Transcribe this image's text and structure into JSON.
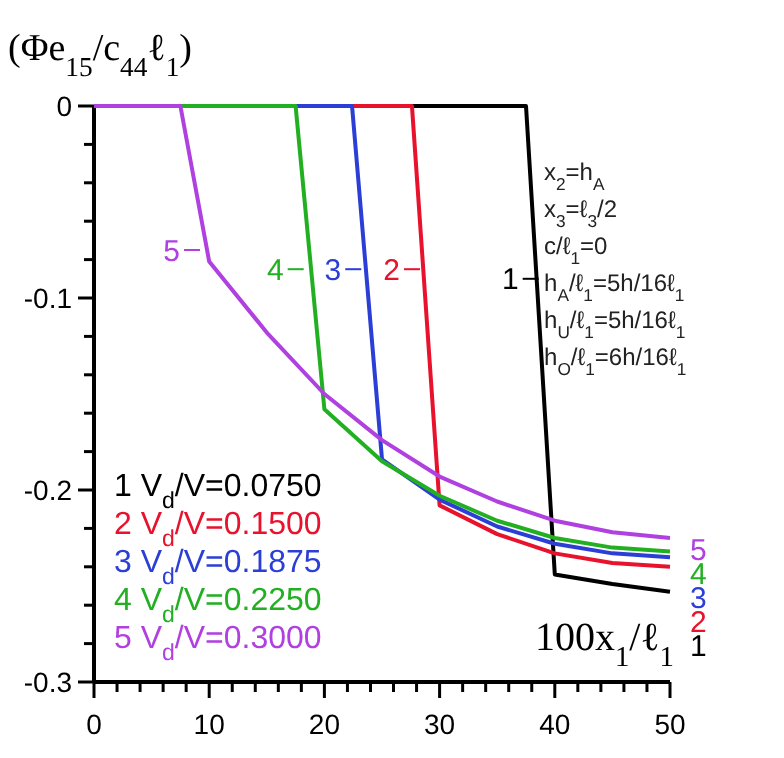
{
  "chart_data": {
    "type": "line",
    "xlabel": "100x$_{1}$/ℓ$_{1}$",
    "ylabel": "(Φe$_{15}$/c$_{44}$ℓ$_{1}$)",
    "xlim": [
      0,
      50
    ],
    "ylim": [
      -0.3,
      0
    ],
    "xticks": [
      0,
      {
        "value": 2,
        "label": null
      },
      {
        "value": 4,
        "label": null
      },
      {
        "value": 6,
        "label": null
      },
      {
        "value": 8,
        "label": null
      },
      10,
      {
        "value": 12,
        "label": null
      },
      {
        "value": 14,
        "label": null
      },
      {
        "value": 16,
        "label": null
      },
      {
        "value": 18,
        "label": null
      },
      20,
      {
        "value": 22,
        "label": null
      },
      {
        "value": 24,
        "label": null
      },
      {
        "value": 26,
        "label": null
      },
      {
        "value": 28,
        "label": null
      },
      30,
      {
        "value": 32,
        "label": null
      },
      {
        "value": 34,
        "label": null
      },
      {
        "value": 36,
        "label": null
      },
      {
        "value": 38,
        "label": null
      },
      40,
      {
        "value": 42,
        "label": null
      },
      {
        "value": 44,
        "label": null
      },
      {
        "value": 46,
        "label": null
      },
      {
        "value": 48,
        "label": null
      },
      50
    ],
    "yticks": [
      {
        "value": -0.3,
        "label": "-0.3"
      },
      {
        "value": -0.28,
        "label": null
      },
      {
        "value": -0.26,
        "label": null
      },
      {
        "value": -0.24,
        "label": null
      },
      {
        "value": -0.22,
        "label": null
      },
      {
        "value": -0.2,
        "label": "-0.2"
      },
      {
        "value": -0.18,
        "label": null
      },
      {
        "value": -0.16,
        "label": null
      },
      {
        "value": -0.14,
        "label": null
      },
      {
        "value": -0.12,
        "label": null
      },
      {
        "value": -0.1,
        "label": "-0.1"
      },
      {
        "value": -0.08,
        "label": null
      },
      {
        "value": -0.06,
        "label": null
      },
      {
        "value": -0.04,
        "label": null
      },
      {
        "value": -0.02,
        "label": null
      },
      0
    ],
    "grid": false,
    "legend": "bottom left",
    "marker": "none",
    "line_style": "solid",
    "series": [
      {
        "name": "1 V$_{d}$/V=0.0750",
        "color": "#000000",
        "x": [
          0,
          37.5,
          40,
          45,
          50
        ],
        "values": [
          0,
          0,
          -0.244,
          -0.249,
          -0.253
        ]
      },
      {
        "name": "2 V$_{d}$/V=0.1500",
        "color": "#e8122d",
        "x": [
          0,
          27.6,
          30,
          35,
          40,
          45,
          50
        ],
        "values": [
          0,
          0,
          -0.208,
          -0.223,
          -0.233,
          -0.238,
          -0.24
        ]
      },
      {
        "name": "3 V$_{d}$/V=0.1875",
        "color": "#2b3fd6",
        "x": [
          0,
          22.4,
          25,
          30,
          35,
          40,
          45,
          50
        ],
        "values": [
          0,
          0,
          -0.184,
          -0.205,
          -0.219,
          -0.228,
          -0.233,
          -0.235
        ]
      },
      {
        "name": "4 V$_{d}$/V=0.2250",
        "color": "#22b022",
        "x": [
          0,
          17.5,
          20,
          25,
          30,
          35,
          40,
          45,
          50
        ],
        "values": [
          0,
          0,
          -0.158,
          -0.185,
          -0.203,
          -0.216,
          -0.225,
          -0.23,
          -0.232
        ]
      },
      {
        "name": "5 V$_{d}$/V=0.3000",
        "color": "#b040e0",
        "x": [
          0,
          7.5,
          10,
          15,
          20,
          25,
          30,
          35,
          40,
          45,
          50
        ],
        "values": [
          0,
          0,
          -0.081,
          -0.118,
          -0.15,
          -0.174,
          -0.193,
          -0.206,
          -0.216,
          -0.222,
          -0.225
        ]
      }
    ],
    "annotations": [
      {
        "text": "1",
        "x": 38.6,
        "y": -0.09
      },
      {
        "text": "2",
        "x": 28.3,
        "y": -0.085
      },
      {
        "text": "3",
        "x": 23.2,
        "y": -0.085
      },
      {
        "text": "4",
        "x": 18.2,
        "y": -0.085
      },
      {
        "text": "5",
        "x": 9.2,
        "y": -0.075
      },
      {
        "text": "1",
        "x": 45,
        "y": -0.251
      },
      {
        "text": "2",
        "x": 49,
        "y": -0.24
      },
      {
        "text": "3",
        "x": 49,
        "y": -0.235
      },
      {
        "text": "4",
        "x": 49,
        "y": -0.232
      },
      {
        "text": "5",
        "x": 47,
        "y": -0.224
      },
      "x$_{2}$=h$_{A}$",
      "x$_{3}$=ℓ$_{3}$/2",
      "c/ℓ$_{1}$=0",
      "h$_{A}$/ℓ$_{1}$=5h/16ℓ$_{1}$",
      "h$_{U}$/ℓ$_{1}$=5h/16ℓ$_{1}$",
      "h$_{O}$/ℓ$_{1}$=6h/16ℓ$_{1}$"
    ]
  }
}
